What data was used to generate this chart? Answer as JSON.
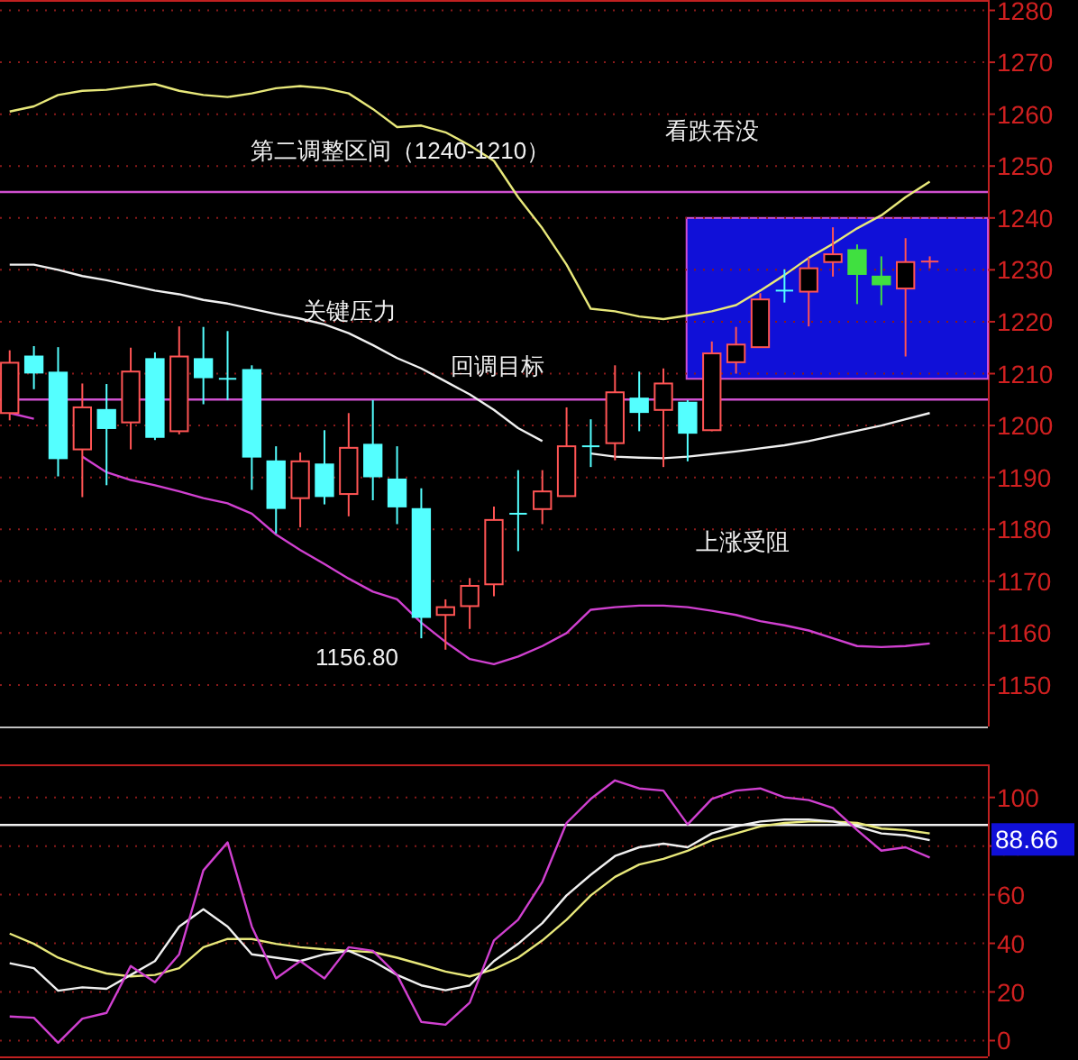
{
  "chart_data": [
    {
      "type": "candlestick",
      "categories": [
        null,
        null,
        null,
        null,
        null,
        null,
        null,
        null,
        null,
        null,
        null,
        null,
        null,
        null,
        null,
        null,
        null,
        null,
        null,
        null,
        null,
        null,
        null,
        null,
        null,
        null,
        null,
        null,
        null,
        null,
        null,
        null,
        null,
        null,
        null,
        null,
        null,
        null,
        null
      ],
      "ohlc": [
        [
          1202.4,
          1214.5,
          1201,
          1212.1
        ],
        [
          1213.3,
          1215.3,
          1207,
          1210.2
        ],
        [
          1210.2,
          1215.1,
          1190.2,
          1193.7
        ],
        [
          1195.4,
          1208.1,
          1186.2,
          1203.5
        ],
        [
          1203,
          1208,
          1188.5,
          1199.5
        ],
        [
          1200.6,
          1215,
          1195.4,
          1210.4
        ],
        [
          1212.8,
          1214.1,
          1197.2,
          1197.8
        ],
        [
          1198.9,
          1219.1,
          1198.3,
          1213.3
        ],
        [
          1212.8,
          1219,
          1204.1,
          1209.3
        ],
        [
          1209,
          1218.2,
          1204.9,
          1209
        ],
        [
          1210.7,
          1211.6,
          1187.6,
          1194
        ],
        [
          1193.1,
          1196,
          1179.2,
          1184.1
        ],
        [
          1186,
          1194.8,
          1180.4,
          1193.1
        ],
        [
          1192.5,
          1199.1,
          1184.8,
          1186.4
        ],
        [
          1186.8,
          1202.4,
          1182.5,
          1195.7
        ],
        [
          1196.3,
          1204.9,
          1185.6,
          1190.2
        ],
        [
          1189.6,
          1196,
          1181,
          1184.4
        ],
        [
          1183.9,
          1187.9,
          1159,
          1163.1
        ],
        [
          1163.5,
          1166.5,
          1156.8,
          1165
        ],
        [
          1165.2,
          1170.6,
          1160.8,
          1169.1
        ],
        [
          1169.4,
          1184.4,
          1167.1,
          1181.8
        ],
        [
          1183,
          1191.4,
          1175.8,
          1183
        ],
        [
          1183.9,
          1191.4,
          1181,
          1187.3
        ],
        [
          1186.4,
          1203.5,
          1186.4,
          1196
        ],
        [
          1196,
          1201.2,
          1192,
          1196
        ],
        [
          1196.6,
          1211.6,
          1193.3,
          1206.4
        ],
        [
          1205.2,
          1210.4,
          1198.9,
          1202.6
        ],
        [
          1203,
          1211,
          1192,
          1208.1
        ],
        [
          1204.4,
          1204.9,
          1193.1,
          1198.6
        ],
        [
          1199.1,
          1216.2,
          1198.9,
          1213.9
        ],
        [
          1212.2,
          1219,
          1210,
          1215.6
        ],
        [
          1215.1,
          1225.5,
          1215,
          1224.3
        ],
        [
          1226,
          1230.1,
          1223.7,
          1226
        ],
        [
          1225.8,
          1232.4,
          1219.1,
          1230.3
        ],
        [
          1231.5,
          1238.2,
          1228.7,
          1233
        ],
        [
          1233.8,
          1234.9,
          1223.4,
          1229.2
        ],
        [
          1228.7,
          1232.6,
          1223.2,
          1227.2
        ],
        [
          1226.4,
          1236.1,
          1213.3,
          1231.5
        ],
        [
          1231.6,
          1232.6,
          1230.3,
          1231.6
        ]
      ],
      "colors": [
        "#ff5454",
        "#54ffff",
        "#54ffff",
        "#ff5454",
        "#54ffff",
        "#ff5454",
        "#54ffff",
        "#ff5454",
        "#54ffff",
        "#54ffff",
        "#54ffff",
        "#54ffff",
        "#ff5454",
        "#54ffff",
        "#ff5454",
        "#54ffff",
        "#54ffff",
        "#54ffff",
        "#ff5454",
        "#ff5454",
        "#ff5454",
        "#54ffff",
        "#ff5454",
        "#ff5454",
        "#54ffff",
        "#ff5454",
        "#54ffff",
        "#ff5454",
        "#54ffff",
        "#ff5454",
        "#ff5454",
        "#ff5454",
        "#54ffff",
        "#ff5454",
        "#ff5454",
        "#40e040",
        "#40e040",
        "#ff5454",
        "#ff5454"
      ],
      "series": [
        {
          "type": "line",
          "color": "#e8e87a",
          "values": [
            1260.5,
            1261.5,
            1263.7,
            1264.5,
            1264.7,
            1265.3,
            1265.8,
            1264.5,
            1263.7,
            1263.3,
            1264,
            1265,
            1265.4,
            1265,
            1264,
            1261,
            1257.5,
            1257.8,
            1256.5,
            1254,
            1251,
            1244,
            1238,
            1231,
            1222.5,
            1222,
            1221,
            1220.5,
            1221.2,
            1222,
            1223.2,
            1226,
            1229,
            1232.3,
            1235,
            1238,
            1240.5,
            1244,
            1247
          ]
        },
        {
          "type": "line",
          "color": "#f0f0f0",
          "values": [
            1231,
            1231,
            1230,
            1228.8,
            1228,
            1227,
            1226,
            1225.3,
            1224.2,
            1223.5,
            1222.5,
            1221.5,
            1220.6,
            1219.5,
            1217.8,
            1215.5,
            1213,
            1211,
            1208.5,
            1206,
            1203,
            1199.5,
            1197,
            null,
            1194.6,
            1194,
            1193.8,
            1193.7,
            1194,
            1194.5,
            1195,
            1195.6,
            1196.2,
            1197,
            1198,
            1199,
            1200,
            1201.2,
            1202.4
          ]
        },
        {
          "type": "line",
          "color": "#d040d0",
          "values": [
            1202.4,
            1201.3,
            null,
            1194,
            1191,
            1189.5,
            1188.5,
            1187.3,
            1186,
            1185,
            1183,
            1179,
            1176,
            1173.3,
            1170.5,
            1168,
            1166.5,
            1162,
            1158.3,
            1155,
            1154,
            1155.5,
            1157.5,
            1160,
            1164.5,
            1165,
            1165.3,
            1165.3,
            1165,
            1164.3,
            1163.5,
            1162.3,
            1161.5,
            1160.5,
            1159,
            1157.5,
            1157.3,
            1157.5,
            1158
          ]
        }
      ],
      "ylim": [
        1142,
        1282
      ],
      "yticks": [
        1150,
        1160,
        1170,
        1180,
        1190,
        1200,
        1210,
        1220,
        1230,
        1240,
        1250,
        1260,
        1270,
        1280
      ],
      "grid": "y",
      "ref_lines": [
        {
          "axis": "y",
          "value": 1245,
          "color": "#d050d0"
        },
        {
          "axis": "y",
          "value": 1205,
          "label": "回调目标",
          "color": "#d050d0"
        }
      ],
      "bands": [
        {
          "axis": "y",
          "from": 1209,
          "to": 1240,
          "color": "#1010d8"
        }
      ],
      "annotations": [
        "第二调整区间（1240-1210）",
        "看跌吞没",
        "关键压力",
        "上涨受阻",
        "1156.80"
      ]
    },
    {
      "type": "line",
      "categories": [
        null,
        null,
        null,
        null,
        null,
        null,
        null,
        null,
        null,
        null,
        null,
        null,
        null,
        null,
        null,
        null,
        null,
        null,
        null,
        null,
        null,
        null,
        null,
        null,
        null,
        null,
        null,
        null,
        null,
        null,
        null,
        null,
        null,
        null,
        null,
        null,
        null,
        null,
        null
      ],
      "series": [
        {
          "color": "#e8e87a",
          "values": [
            44,
            39.8,
            34.1,
            30.4,
            27.6,
            26.4,
            27,
            29.8,
            38.4,
            41.8,
            41.8,
            39.8,
            38.4,
            37.5,
            36.9,
            36.4,
            34.1,
            31.3,
            28.4,
            26.4,
            29.3,
            34.1,
            41.2,
            49.7,
            59.7,
            67.3,
            72.4,
            74.7,
            78.1,
            82.4,
            85.2,
            88.1,
            89.5,
            90.1,
            90.1,
            89.5,
            87.2,
            86.6,
            85.2
          ]
        },
        {
          "color": "#f0f0f0",
          "values": [
            31.8,
            29.8,
            20.5,
            21.9,
            21.3,
            27,
            32.7,
            46.9,
            54,
            46.9,
            35.5,
            34.1,
            32.7,
            35.5,
            36.9,
            32.7,
            27,
            22.7,
            20.7,
            22.7,
            32.7,
            39.8,
            48.3,
            59.7,
            68.2,
            75.9,
            79.5,
            81,
            79.5,
            85.2,
            88.1,
            90.1,
            90.9,
            90.9,
            90.1,
            88.1,
            85.2,
            84.4,
            82.4
          ]
        },
        {
          "color": "#d040d0",
          "values": [
            9.9,
            9.4,
            -0.9,
            9,
            11.4,
            30.7,
            24,
            35.5,
            70,
            81.5,
            46.9,
            25.6,
            32.7,
            25.6,
            38.4,
            36.9,
            27,
            7.7,
            6.5,
            15.6,
            41.2,
            49.7,
            65.3,
            89.5,
            99.4,
            107,
            103.7,
            102.8,
            88.9,
            99.4,
            102.8,
            103.7,
            100,
            98.9,
            95.7,
            86.6,
            78.1,
            79.5,
            75.3
          ]
        }
      ],
      "ylim": [
        -6.5,
        113.6
      ],
      "yticks": [
        0,
        20,
        40,
        60,
        80,
        100
      ],
      "grid": "y",
      "ref_lines": [
        {
          "axis": "y",
          "value": 88.66,
          "label": "88.66",
          "color": "#f0f0f0"
        }
      ]
    }
  ]
}
